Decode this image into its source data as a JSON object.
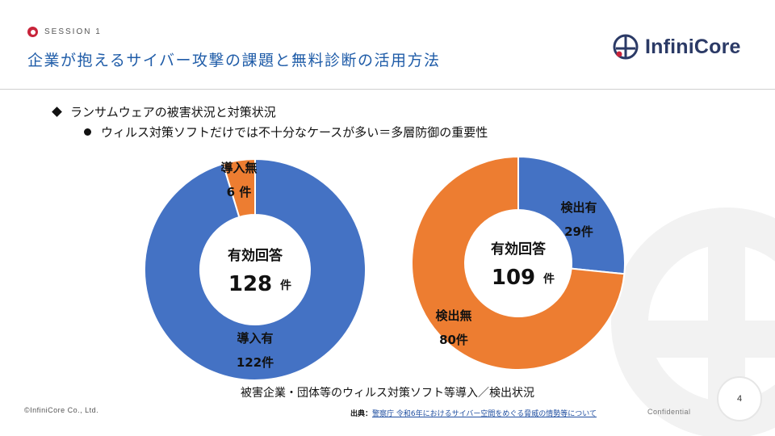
{
  "header": {
    "session_label": "SESSION 1",
    "title": "企業が抱えるサイバー攻撃の課題と無料診断の活用方法",
    "logo_text": "InfiniCore",
    "accent_color": "#1f5ca8",
    "session_color": "#c8243a"
  },
  "bullets": {
    "level1": "ランサムウェアの被害状況と対策状況",
    "level2": "ウィルス対策ソフトだけでは不十分なケースが多い＝多層防御の重要性"
  },
  "chart_data": [
    {
      "type": "pie",
      "style": "donut",
      "center_label": "有効回答",
      "center_value": "128",
      "center_unit": "件",
      "slices": [
        {
          "label": "導入有",
          "value": 122,
          "value_text": "122件",
          "color": "#4472c4"
        },
        {
          "label": "導入無",
          "value": 6,
          "value_text": "6 件",
          "color": "#ed7d31"
        }
      ]
    },
    {
      "type": "pie",
      "style": "donut",
      "center_label": "有効回答",
      "center_value": "109",
      "center_unit": "件",
      "slices": [
        {
          "label": "検出有",
          "value": 29,
          "value_text": "29件",
          "color": "#4472c4"
        },
        {
          "label": "検出無",
          "value": 80,
          "value_text": "80件",
          "color": "#ed7d31"
        }
      ]
    }
  ],
  "caption": "被害企業・団体等のウィルス対策ソフト等導入／検出状況",
  "footer": {
    "copyright": "©InfiniCore Co., Ltd.",
    "source_label": "出典：",
    "source_link": "警察庁 令和6年におけるサイバー空間をめぐる脅威の情勢等について",
    "confidential": "Confidential",
    "page_number": "4"
  }
}
